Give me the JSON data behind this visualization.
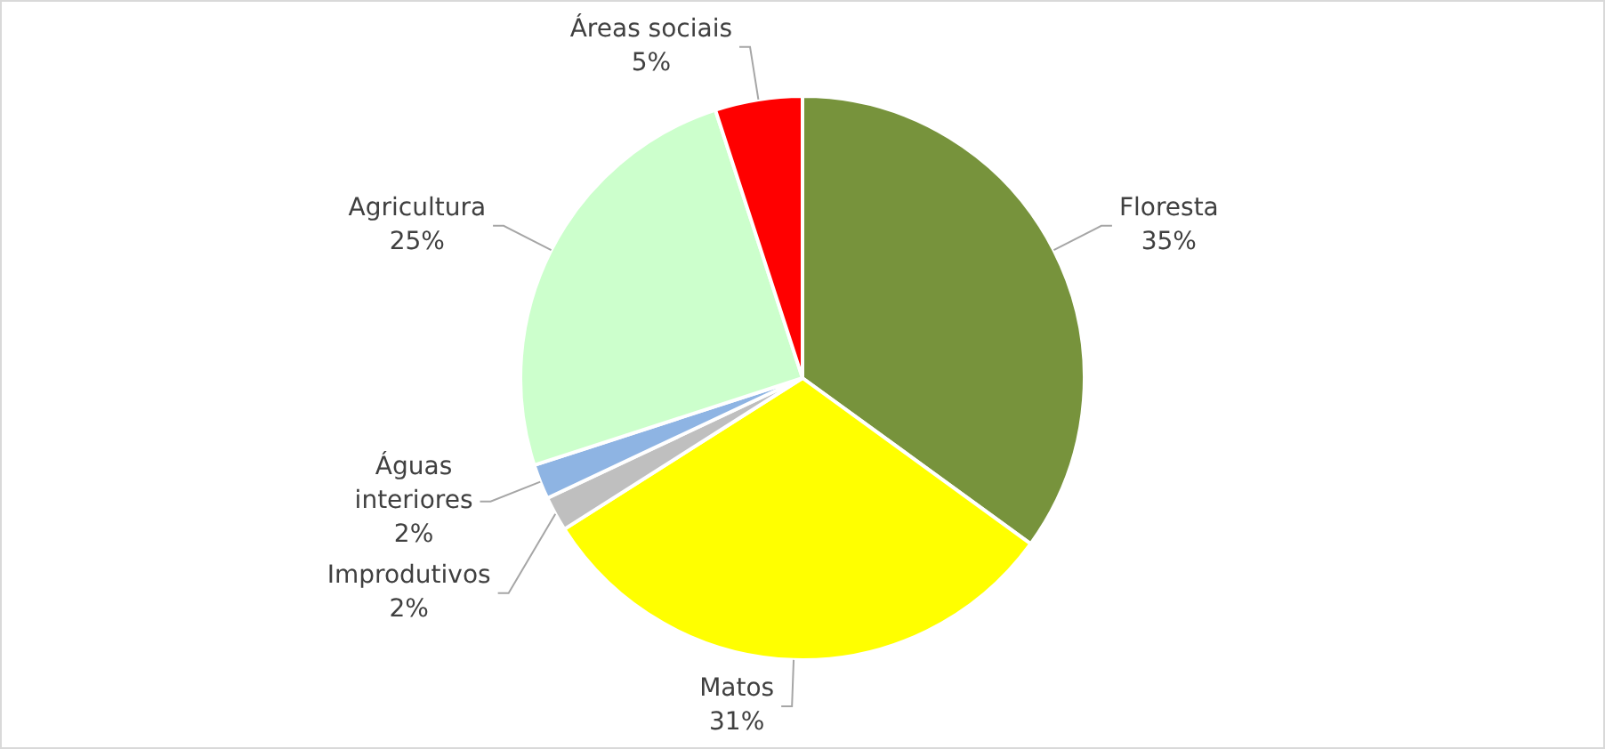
{
  "chart_data": {
    "type": "pie",
    "categories": [
      "Floresta",
      "Matos",
      "Improdutivos",
      "Águas interiores",
      "Agricultura",
      "Áreas sociais"
    ],
    "values": [
      35,
      31,
      2,
      2,
      25,
      5
    ],
    "value_labels": [
      "35%",
      "31%",
      "2%",
      "2%",
      "25%",
      "5%"
    ],
    "colors": [
      "#77933c",
      "#ffff00",
      "#bfbfbf",
      "#8eb4e3",
      "#ccffcc",
      "#ff0000"
    ],
    "legend": false
  }
}
